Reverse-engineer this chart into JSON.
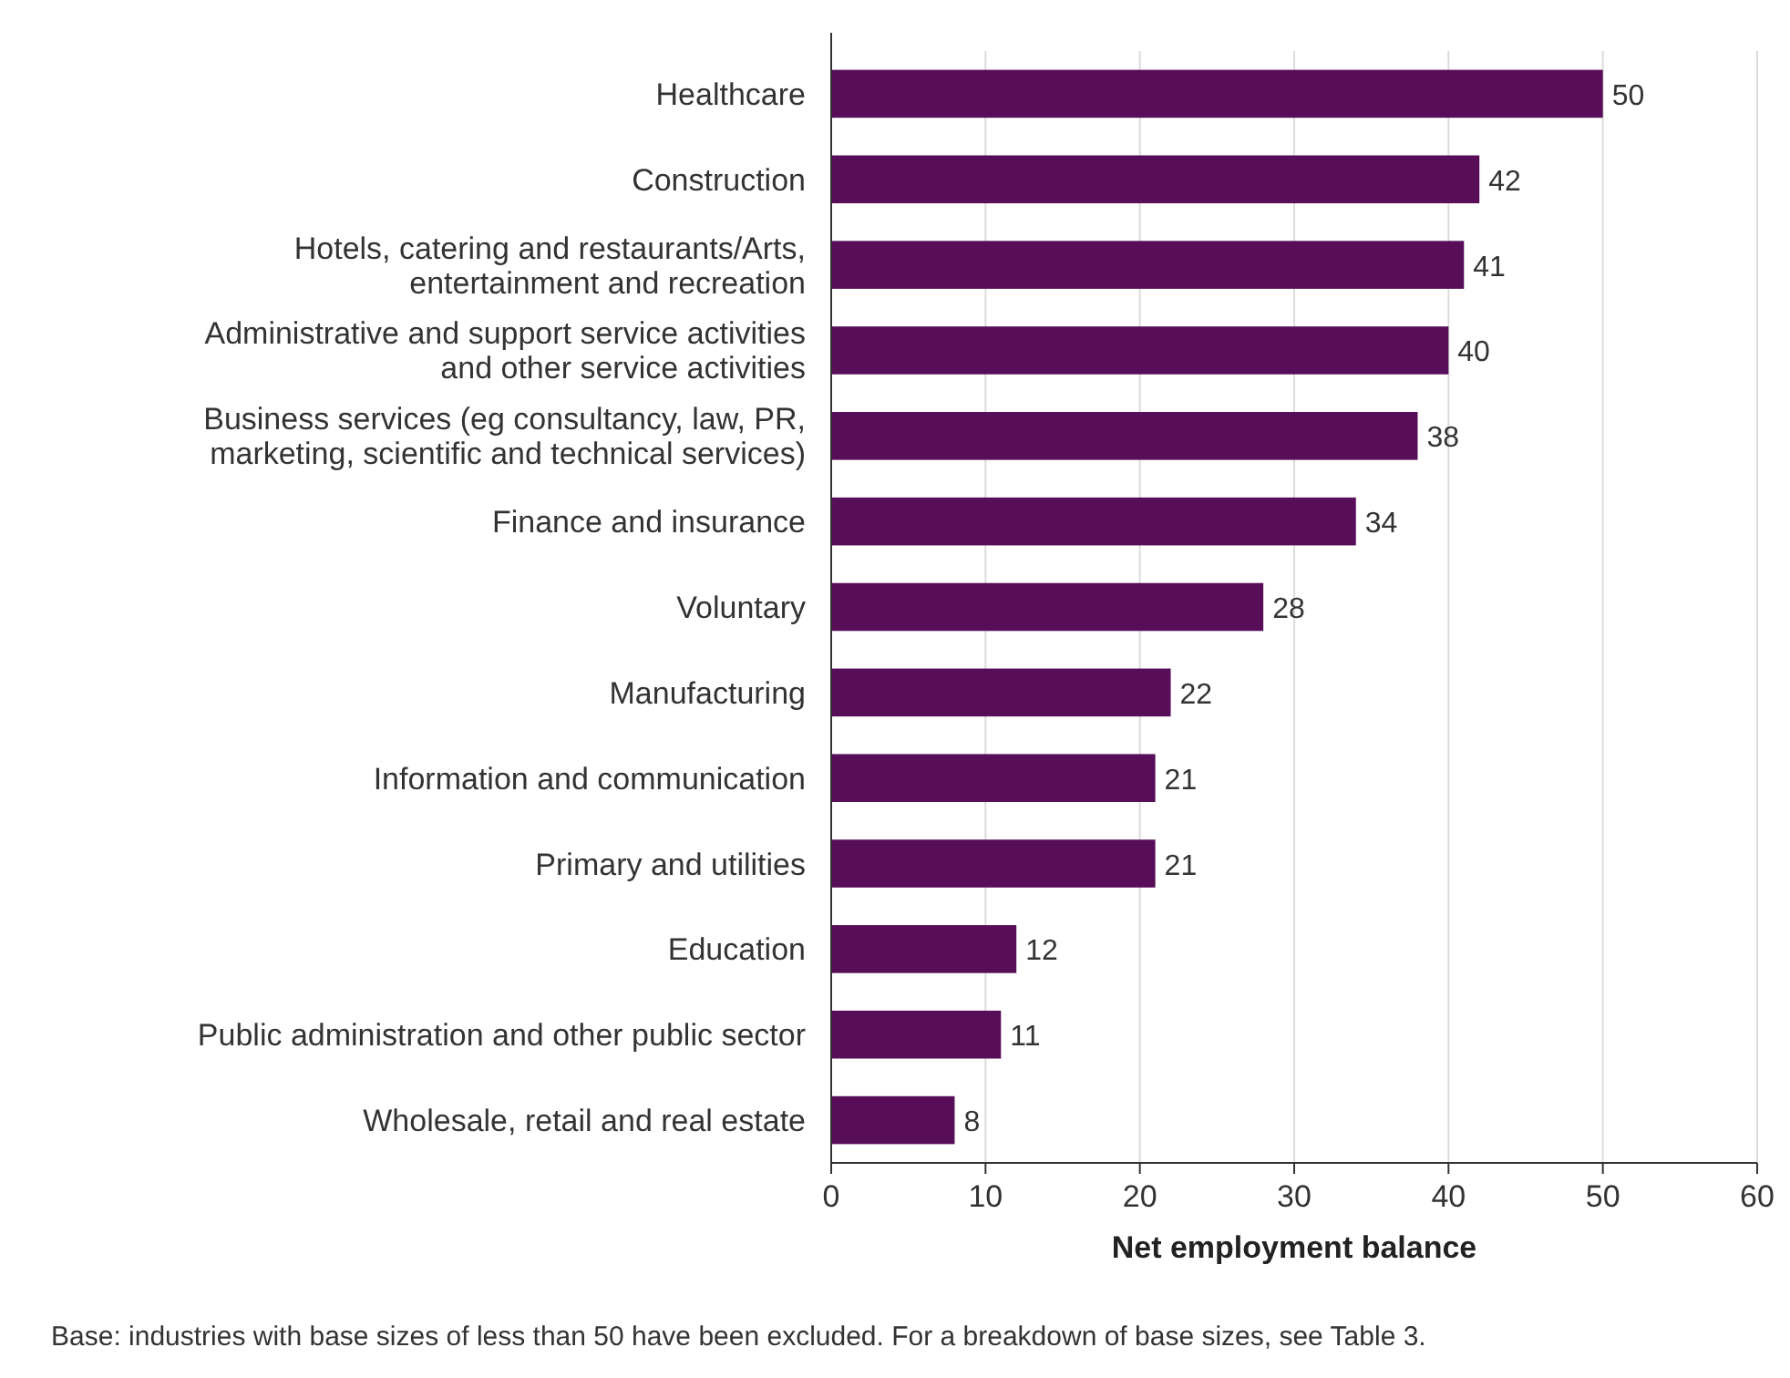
{
  "chart_data": {
    "type": "bar",
    "orientation": "horizontal",
    "xlabel": "Net employment balance",
    "categories": [
      "Healthcare",
      "Construction",
      "Hotels, catering and restaurants/Arts, entertainment and recreation",
      "Administrative and support service activities and other service activities",
      "Business services (eg consultancy, law, PR, marketing, scientific and technical services)",
      "Finance and insurance",
      "Voluntary",
      "Manufacturing",
      "Information and communication",
      "Primary and utilities",
      "Education",
      "Public administration and other public sector",
      "Wholesale, retail and real estate"
    ],
    "values": [
      50,
      42,
      41,
      40,
      38,
      34,
      28,
      22,
      21,
      21,
      12,
      11,
      8
    ],
    "color": "#570d58",
    "data_labels": true,
    "xlim": [
      0,
      60
    ],
    "xticks": [
      0,
      10,
      20,
      30,
      40,
      50,
      60
    ],
    "grid": "x",
    "annotations": [
      "Base: industries with base sizes of less than 50 have been excluded. For a breakdown of base sizes, see Table 3."
    ]
  }
}
